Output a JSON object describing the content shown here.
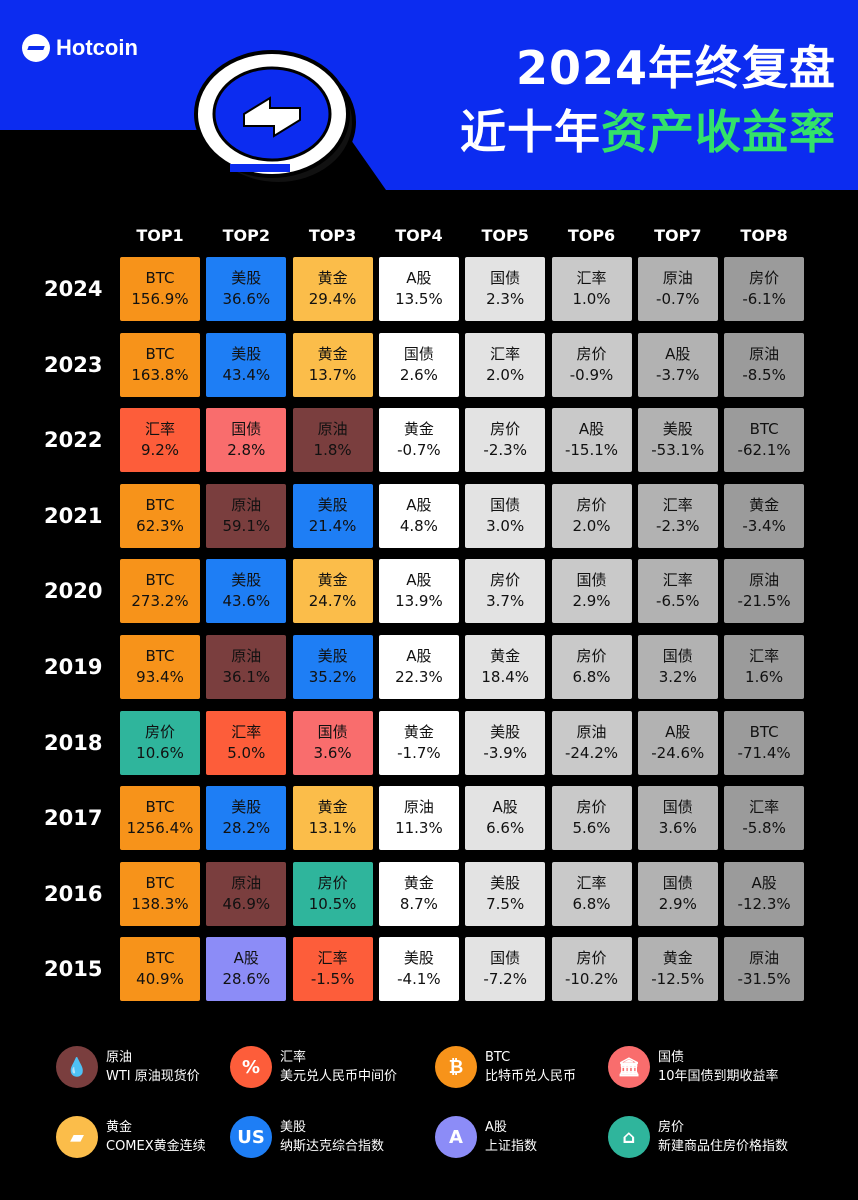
{
  "brand": "Hotcoin",
  "title": {
    "line1": "2024年终复盘",
    "line2_white": "近十年",
    "line2_green": "资产收益率"
  },
  "colors": {
    "blue": "#0c2cf0",
    "green": "#33e26a"
  },
  "chart_data": {
    "type": "table",
    "columns": [
      "TOP1",
      "TOP2",
      "TOP3",
      "TOP4",
      "TOP5",
      "TOP6",
      "TOP7",
      "TOP8"
    ],
    "rows": [
      {
        "year": "2024",
        "cells": [
          [
            "BTC",
            "156.9%"
          ],
          [
            "美股",
            "36.6%"
          ],
          [
            "黄金",
            "29.4%"
          ],
          [
            "A股",
            "13.5%"
          ],
          [
            "国债",
            "2.3%"
          ],
          [
            "汇率",
            "1.0%"
          ],
          [
            "原油",
            "-0.7%"
          ],
          [
            "房价",
            "-6.1%"
          ]
        ]
      },
      {
        "year": "2023",
        "cells": [
          [
            "BTC",
            "163.8%"
          ],
          [
            "美股",
            "43.4%"
          ],
          [
            "黄金",
            "13.7%"
          ],
          [
            "国债",
            "2.6%"
          ],
          [
            "汇率",
            "2.0%"
          ],
          [
            "房价",
            "-0.9%"
          ],
          [
            "A股",
            "-3.7%"
          ],
          [
            "原油",
            "-8.5%"
          ]
        ]
      },
      {
        "year": "2022",
        "cells": [
          [
            "汇率",
            "9.2%"
          ],
          [
            "国债",
            "2.8%"
          ],
          [
            "原油",
            "1.8%"
          ],
          [
            "黄金",
            "-0.7%"
          ],
          [
            "房价",
            "-2.3%"
          ],
          [
            "A股",
            "-15.1%"
          ],
          [
            "美股",
            "-53.1%"
          ],
          [
            "BTC",
            "-62.1%"
          ]
        ]
      },
      {
        "year": "2021",
        "cells": [
          [
            "BTC",
            "62.3%"
          ],
          [
            "原油",
            "59.1%"
          ],
          [
            "美股",
            "21.4%"
          ],
          [
            "A股",
            "4.8%"
          ],
          [
            "国债",
            "3.0%"
          ],
          [
            "房价",
            "2.0%"
          ],
          [
            "汇率",
            "-2.3%"
          ],
          [
            "黄金",
            "-3.4%"
          ]
        ]
      },
      {
        "year": "2020",
        "cells": [
          [
            "BTC",
            "273.2%"
          ],
          [
            "美股",
            "43.6%"
          ],
          [
            "黄金",
            "24.7%"
          ],
          [
            "A股",
            "13.9%"
          ],
          [
            "房价",
            "3.7%"
          ],
          [
            "国债",
            "2.9%"
          ],
          [
            "汇率",
            "-6.5%"
          ],
          [
            "原油",
            "-21.5%"
          ]
        ]
      },
      {
        "year": "2019",
        "cells": [
          [
            "BTC",
            "93.4%"
          ],
          [
            "原油",
            "36.1%"
          ],
          [
            "美股",
            "35.2%"
          ],
          [
            "A股",
            "22.3%"
          ],
          [
            "黄金",
            "18.4%"
          ],
          [
            "房价",
            "6.8%"
          ],
          [
            "国债",
            "3.2%"
          ],
          [
            "汇率",
            "1.6%"
          ]
        ]
      },
      {
        "year": "2018",
        "cells": [
          [
            "房价",
            "10.6%"
          ],
          [
            "汇率",
            "5.0%"
          ],
          [
            "国债",
            "3.6%"
          ],
          [
            "黄金",
            "-1.7%"
          ],
          [
            "美股",
            "-3.9%"
          ],
          [
            "原油",
            "-24.2%"
          ],
          [
            "A股",
            "-24.6%"
          ],
          [
            "BTC",
            "-71.4%"
          ]
        ]
      },
      {
        "year": "2017",
        "cells": [
          [
            "BTC",
            "1256.4%"
          ],
          [
            "美股",
            "28.2%"
          ],
          [
            "黄金",
            "13.1%"
          ],
          [
            "原油",
            "11.3%"
          ],
          [
            "A股",
            "6.6%"
          ],
          [
            "房价",
            "5.6%"
          ],
          [
            "国债",
            "3.6%"
          ],
          [
            "汇率",
            "-5.8%"
          ]
        ]
      },
      {
        "year": "2016",
        "cells": [
          [
            "BTC",
            "138.3%"
          ],
          [
            "原油",
            "46.9%"
          ],
          [
            "房价",
            "10.5%"
          ],
          [
            "黄金",
            "8.7%"
          ],
          [
            "美股",
            "7.5%"
          ],
          [
            "汇率",
            "6.8%"
          ],
          [
            "国债",
            "2.9%"
          ],
          [
            "A股",
            "-12.3%"
          ]
        ]
      },
      {
        "year": "2015",
        "cells": [
          [
            "BTC",
            "40.9%"
          ],
          [
            "A股",
            "28.6%"
          ],
          [
            "汇率",
            "-1.5%"
          ],
          [
            "美股",
            "-4.1%"
          ],
          [
            "国债",
            "-7.2%"
          ],
          [
            "房价",
            "-10.2%"
          ],
          [
            "黄金",
            "-12.5%"
          ],
          [
            "原油",
            "-31.5%"
          ]
        ]
      }
    ],
    "asset_colors": {
      "BTC": "#f7931a",
      "美股": "#1e7ef5",
      "黄金": "#fbbd4a",
      "汇率": "#fd5d3a",
      "国债": "#f96d6d",
      "原油": "#7a3e3e",
      "房价": "#2fb59c",
      "A股": "#8c8cf7"
    },
    "column_tail_colors": [
      "#ffffff",
      "#e3e3e3",
      "#c9c9c9",
      "#b2b2b2",
      "#9b9b9b"
    ]
  },
  "legend": [
    {
      "name": "原油",
      "desc": "WTI 原油现货价",
      "icon": "oil-drop-icon",
      "glyph": "💧",
      "color": "#7a3e3e"
    },
    {
      "name": "汇率",
      "desc": "美元兑人民币中间价",
      "icon": "percent-icon",
      "glyph": "%",
      "color": "#fd5d3a"
    },
    {
      "name": "BTC",
      "desc": "比特币兑人民币",
      "icon": "bitcoin-icon",
      "glyph": "₿",
      "color": "#f7931a"
    },
    {
      "name": "国债",
      "desc": "10年国债到期收益率",
      "icon": "bank-icon",
      "glyph": "🏛",
      "color": "#f96d6d"
    },
    {
      "name": "黄金",
      "desc": "COMEX黄金连续",
      "icon": "gold-bars-icon",
      "glyph": "▰",
      "color": "#fbbd4a"
    },
    {
      "name": "美股",
      "desc": "纳斯达克综合指数",
      "icon": "us-icon",
      "glyph": "US",
      "color": "#1e7ef5"
    },
    {
      "name": "A股",
      "desc": "上证指数",
      "icon": "a-letter-icon",
      "glyph": "A",
      "color": "#8c8cf7"
    },
    {
      "name": "房价",
      "desc": "新建商品住房价格指数",
      "icon": "house-icon",
      "glyph": "⌂",
      "color": "#2fb59c"
    }
  ]
}
